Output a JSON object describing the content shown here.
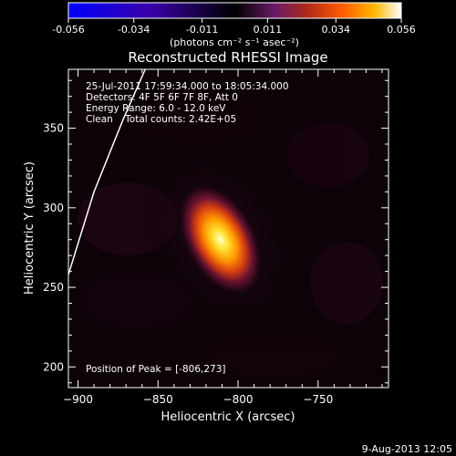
{
  "colorbar": {
    "ticks": [
      "-0.056",
      "-0.034",
      "-0.011",
      "0.011",
      "0.034",
      "0.056"
    ],
    "tick_values": [
      -0.056,
      -0.034,
      -0.011,
      0.011,
      0.034,
      0.056
    ],
    "range": [
      -0.056,
      0.056
    ],
    "units": "(photons cm⁻² s⁻¹ asec⁻²)"
  },
  "plot": {
    "title": "Reconstructed RHESSI Image",
    "info_lines": [
      "25-Jul-2011 17:59:34.000 to 18:05:34.000",
      "Detectors: 4F 5F 6F 7F 8F, Att 0",
      "Energy Range: 6.0 - 12.0 keV",
      "Clean    Total counts: 2.42E+05"
    ],
    "peak_label": "Position of Peak = [-806,273]"
  },
  "footer": {
    "timestamp": "9-Aug-2013 12:05"
  },
  "chart_data": {
    "type": "heatmap",
    "title": "Reconstructed RHESSI Image",
    "xlabel": "Heliocentric X (arcsec)",
    "ylabel": "Heliocentric Y (arcsec)",
    "xlim": [
      -906,
      -706
    ],
    "ylim": [
      187,
      387
    ],
    "x_ticks": [
      -900,
      -850,
      -800,
      -750
    ],
    "x_tick_labels": [
      "−900",
      "−850",
      "−800",
      "−750"
    ],
    "y_ticks": [
      200,
      250,
      300,
      350
    ],
    "y_tick_labels": [
      "200",
      "250",
      "300",
      "350"
    ],
    "peak": {
      "x": -806,
      "y": 273
    },
    "source": {
      "x": -811,
      "y": 280,
      "sigma_major": 17,
      "sigma_minor": 10,
      "tilt_deg": 62
    },
    "limb_curve": {
      "x": [
        -906,
        -890,
        -872,
        -858
      ],
      "y": [
        258,
        310,
        355,
        387
      ]
    }
  }
}
